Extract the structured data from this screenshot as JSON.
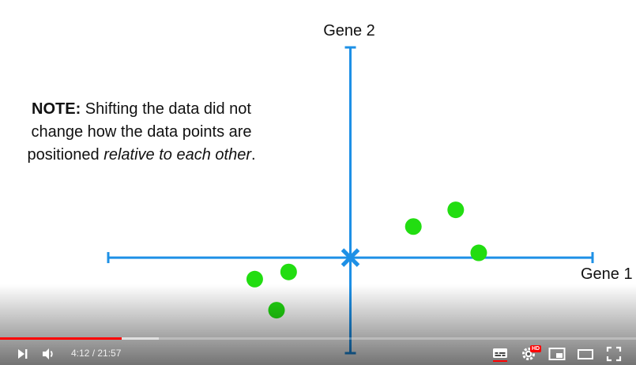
{
  "chart_data": {
    "type": "scatter",
    "xlabel": "Gene 1",
    "ylabel": "Gene 2",
    "xlim": [
      -10,
      10
    ],
    "ylim": [
      -4,
      8.8
    ],
    "origin_marker": "X",
    "points": [
      {
        "x": -3.95,
        "y": -0.9
      },
      {
        "x": -2.55,
        "y": -0.6
      },
      {
        "x": -3.05,
        "y": -2.2
      },
      {
        "x": 2.6,
        "y": 1.3
      },
      {
        "x": 4.35,
        "y": 2.0
      },
      {
        "x": 5.3,
        "y": 0.2
      }
    ],
    "point_color": "#22dd11",
    "axis_color": "#1e90e6"
  },
  "note": {
    "bold": "NOTE:",
    "part1": " Shifting the data did not change how the data points are positioned ",
    "italic1": "relative to each other",
    "end": "."
  },
  "player": {
    "current_time": "4:12",
    "separator": " / ",
    "duration": "21:57",
    "played_fraction": 0.1913,
    "buffered_fraction": 0.25,
    "hd_badge": "HD",
    "icons": [
      "next-icon",
      "volume-icon",
      "subtitles-icon",
      "settings-icon",
      "miniplayer-icon",
      "theater-icon",
      "fullscreen-icon"
    ]
  }
}
